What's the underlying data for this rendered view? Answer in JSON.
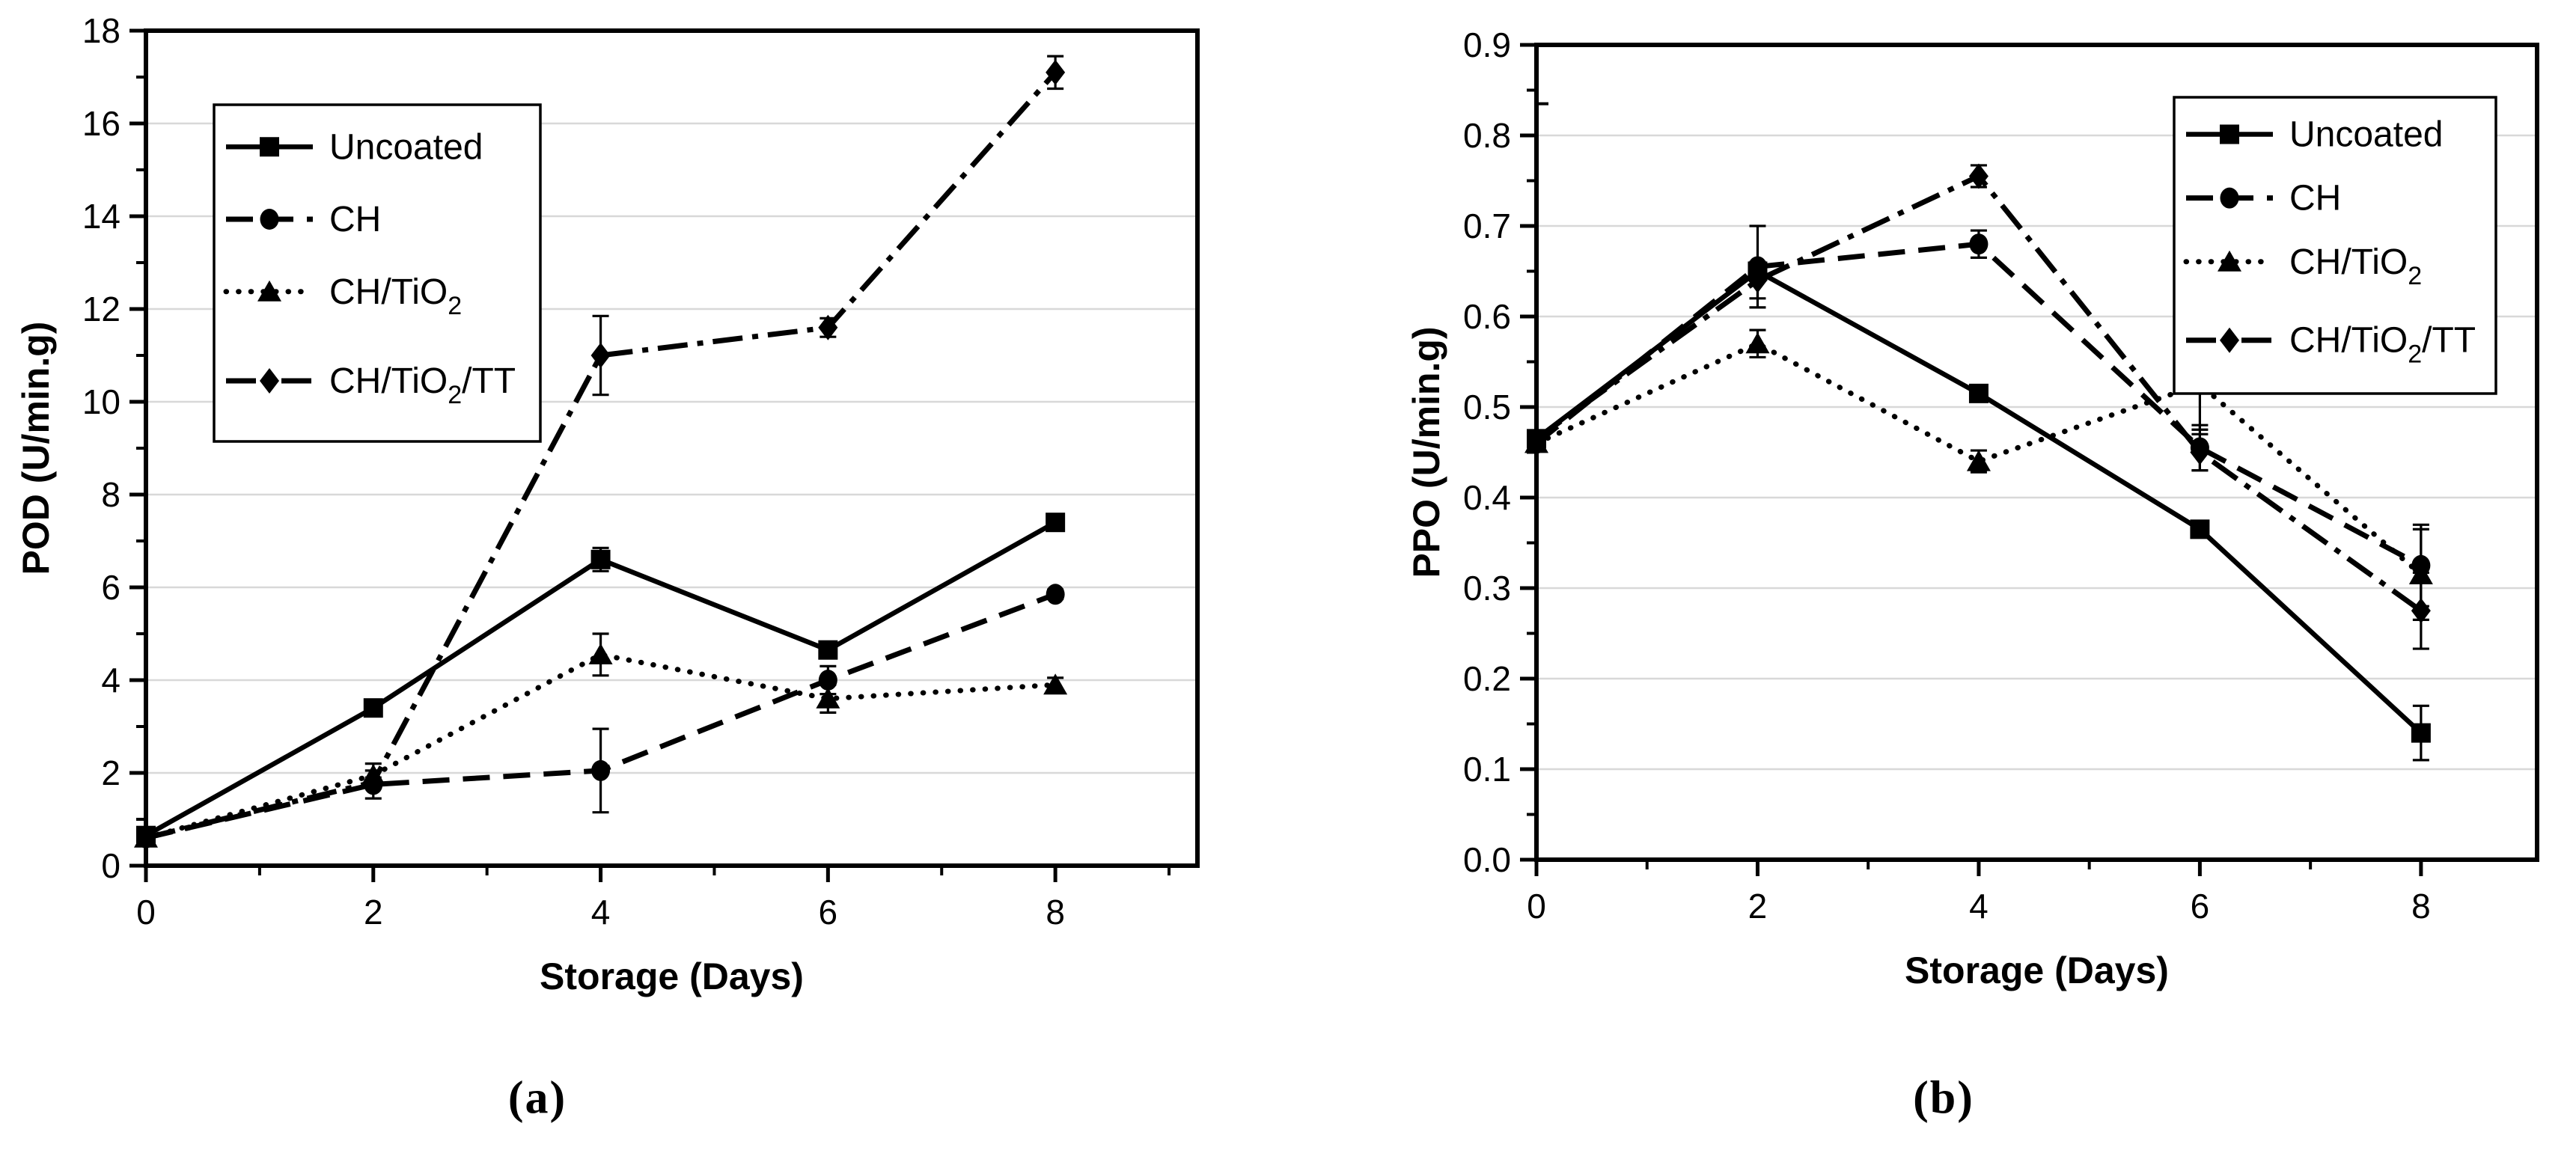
{
  "figure": {
    "background": "#ffffff",
    "text_color": "#000000",
    "grid_color": "#d8d8d8",
    "captions": {
      "a": "(a)",
      "b": "(b)"
    }
  },
  "chart_data": [
    {
      "type": "line",
      "panel": "a",
      "xlabel": "Storage (Days)",
      "ylabel": "POD (U/min.g)",
      "xlim": [
        0,
        9.25
      ],
      "ylim": [
        0,
        18
      ],
      "x": [
        0,
        2,
        4,
        6,
        8
      ],
      "xtick_labels": [
        "0",
        "2",
        "4",
        "6",
        "8"
      ],
      "xticks_major": [
        0,
        2,
        4,
        6,
        8
      ],
      "xticks_minor": [
        1,
        3,
        5,
        7,
        9
      ],
      "ytick_labels": [
        "0",
        "2",
        "4",
        "6",
        "8",
        "10",
        "12",
        "14",
        "16",
        "18"
      ],
      "yticks_major": [
        0,
        2,
        4,
        6,
        8,
        10,
        12,
        14,
        16,
        18
      ],
      "yticks_minor": [
        1,
        3,
        5,
        7,
        9,
        11,
        13,
        15,
        17
      ],
      "grid": "horizontal-major",
      "legend_position": "top-left",
      "series": [
        {
          "name": "Uncoated",
          "label_parts": [
            {
              "t": "Uncoated"
            }
          ],
          "marker": "square",
          "line_style": "solid",
          "values": [
            0.65,
            3.4,
            6.6,
            4.65,
            7.4
          ],
          "errors": [
            0.05,
            0.08,
            0.25,
            0.1,
            0.15
          ]
        },
        {
          "name": "CH",
          "label_parts": [
            {
              "t": "CH"
            }
          ],
          "marker": "circle",
          "line_style": "dash",
          "values": [
            0.6,
            1.75,
            2.05,
            4.0,
            5.85
          ],
          "errors": [
            0.05,
            0.3,
            0.9,
            0.3,
            0.1
          ]
        },
        {
          "name": "CH/TiO2",
          "label_parts": [
            {
              "t": "CH/TiO"
            },
            {
              "t": "2",
              "sub": true
            }
          ],
          "marker": "triangle",
          "line_style": "dot",
          "values": [
            0.6,
            1.95,
            4.55,
            3.6,
            3.9
          ],
          "errors": [
            0.05,
            0.25,
            0.45,
            0.3,
            0.15
          ]
        },
        {
          "name": "CH/TiO2/TT",
          "label_parts": [
            {
              "t": "CH/TiO"
            },
            {
              "t": "2",
              "sub": true
            },
            {
              "t": "/TT"
            }
          ],
          "marker": "diamond",
          "line_style": "dashdot",
          "values": [
            0.6,
            1.8,
            11.0,
            11.6,
            17.1
          ],
          "errors": [
            0.05,
            0.1,
            0.85,
            0.2,
            0.35
          ]
        }
      ]
    },
    {
      "type": "line",
      "panel": "b",
      "xlabel": "Storage (Days)",
      "ylabel": "PPO (U/min.g)",
      "xlim": [
        0,
        9.05
      ],
      "ylim": [
        0,
        0.9
      ],
      "x": [
        0,
        2,
        4,
        6,
        8
      ],
      "xtick_labels": [
        "0",
        "2",
        "4",
        "6",
        "8"
      ],
      "xticks_major": [
        0,
        2,
        4,
        6,
        8
      ],
      "xticks_minor": [
        1,
        3,
        5,
        7
      ],
      "ytick_labels": [
        "0.0",
        "0.1",
        "0.2",
        "0.3",
        "0.4",
        "0.5",
        "0.6",
        "0.7",
        "0.8",
        "0.9"
      ],
      "yticks_major": [
        0,
        0.1,
        0.2,
        0.3,
        0.4,
        0.5,
        0.6,
        0.7,
        0.8,
        0.9
      ],
      "yticks_minor": [
        0.05,
        0.15,
        0.25,
        0.35,
        0.45,
        0.55,
        0.65,
        0.75,
        0.85
      ],
      "grid": "horizontal-major",
      "legend_position": "top-right",
      "stray_tick_value": 0.835,
      "series": [
        {
          "name": "Uncoated",
          "label_parts": [
            {
              "t": "Uncoated"
            }
          ],
          "marker": "square",
          "line_style": "solid",
          "values": [
            0.465,
            0.65,
            0.515,
            0.365,
            0.14
          ],
          "errors": [
            0.005,
            0.01,
            0.008,
            0.008,
            0.03
          ]
        },
        {
          "name": "CH",
          "label_parts": [
            {
              "t": "CH"
            }
          ],
          "marker": "circle",
          "line_style": "dash",
          "values": [
            0.46,
            0.655,
            0.68,
            0.455,
            0.325
          ],
          "errors": [
            0.005,
            0.045,
            0.015,
            0.025,
            0.045
          ]
        },
        {
          "name": "CH/TiO2",
          "label_parts": [
            {
              "t": "CH/TiO"
            },
            {
              "t": "2",
              "sub": true
            }
          ],
          "marker": "triangle",
          "line_style": "dot",
          "values": [
            0.46,
            0.57,
            0.44,
            0.525,
            0.315
          ],
          "errors": [
            0.005,
            0.015,
            0.012,
            0.05,
            0.05
          ]
        },
        {
          "name": "CH/TiO2/TT",
          "label_parts": [
            {
              "t": "CH/TiO"
            },
            {
              "t": "2",
              "sub": true
            },
            {
              "t": "/TT"
            }
          ],
          "marker": "diamond",
          "line_style": "dashdot",
          "values": [
            0.465,
            0.64,
            0.755,
            0.45,
            0.275
          ],
          "errors": [
            0.005,
            0.02,
            0.012,
            0.02,
            0.042
          ]
        }
      ]
    }
  ]
}
